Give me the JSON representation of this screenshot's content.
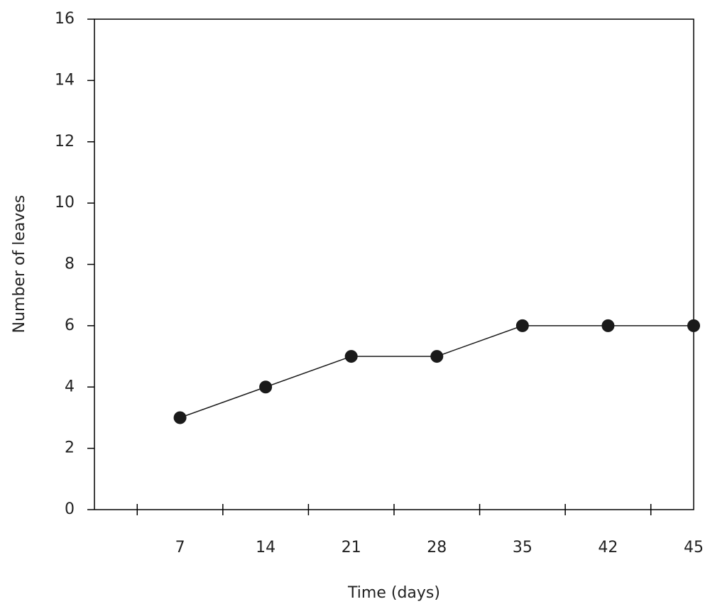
{
  "chart_data": {
    "type": "line",
    "x_label": "Time (days)",
    "y_label": "Number of leaves",
    "categories": [
      "7",
      "14",
      "21",
      "28",
      "35",
      "42",
      "45"
    ],
    "values": [
      3,
      4,
      5,
      5,
      6,
      6,
      6
    ],
    "color": "#1a1a1a",
    "ylim": [
      0,
      16
    ],
    "yticks": [
      0,
      2,
      4,
      6,
      8,
      10,
      12,
      14,
      16
    ]
  }
}
